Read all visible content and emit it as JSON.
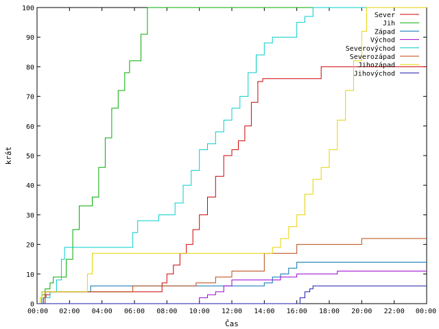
{
  "chart_data": {
    "type": "line",
    "title": "",
    "xlabel": "Čas",
    "ylabel": "krát",
    "xlim": [
      0,
      24
    ],
    "ylim": [
      0,
      100
    ],
    "x_ticks": [
      "00:00",
      "02:00",
      "04:00",
      "06:00",
      "08:00",
      "10:00",
      "12:00",
      "14:00",
      "16:00",
      "18:00",
      "20:00",
      "22:00",
      "00:00"
    ],
    "y_ticks": [
      "0",
      "10",
      "20",
      "30",
      "40",
      "50",
      "60",
      "70",
      "80",
      "90",
      "100"
    ],
    "grid": false,
    "legend_position": "top-right",
    "series": [
      {
        "name": "Sever",
        "color": "#cc0000",
        "x": [
          0,
          0.4,
          0.55,
          0.8,
          1.0,
          7.6,
          7.7,
          8.0,
          8.4,
          8.8,
          9.2,
          9.6,
          10.0,
          10.5,
          11.0,
          11.5,
          12.0,
          12.4,
          12.8,
          13.2,
          13.6,
          13.9,
          17.0,
          17.5,
          24
        ],
        "y": [
          0,
          2,
          3,
          4,
          4,
          4,
          7,
          10,
          13,
          17,
          20,
          25,
          30,
          36,
          43,
          50,
          52,
          55,
          60,
          68,
          75,
          76,
          76,
          80,
          80
        ]
      },
      {
        "name": "Jih",
        "color": "#00aa00",
        "x": [
          0,
          0.3,
          0.5,
          0.8,
          1.0,
          1.6,
          1.8,
          2.2,
          2.6,
          3.0,
          3.4,
          3.8,
          4.2,
          4.6,
          5.0,
          5.4,
          5.7,
          6.0,
          6.4,
          6.8,
          24
        ],
        "y": [
          0,
          3,
          5,
          7,
          9,
          9,
          15,
          25,
          33,
          33,
          36,
          46,
          56,
          66,
          72,
          78,
          82,
          82,
          91,
          100,
          100
        ]
      },
      {
        "name": "Západ",
        "color": "#0072b2",
        "x": [
          0,
          0.3,
          0.4,
          3.2,
          3.3,
          12.6,
          13.6,
          14.0,
          14.5,
          15.0,
          15.5,
          16.0,
          24
        ],
        "y": [
          0,
          4,
          4,
          4,
          6,
          6,
          6,
          7,
          9,
          10,
          12,
          14,
          14
        ]
      },
      {
        "name": "Východ",
        "color": "#9900cc",
        "x": [
          0,
          9.9,
          10.0,
          10.5,
          11.0,
          11.5,
          12.0,
          13.0,
          14.0,
          15.0,
          16.0,
          17.0,
          18.5,
          24
        ],
        "y": [
          0,
          0,
          2,
          3,
          4,
          6,
          8,
          8,
          8,
          9,
          10,
          10,
          11,
          11
        ]
      },
      {
        "name": "Severovýchod",
        "color": "#00cccc",
        "x": [
          0,
          0.5,
          0.8,
          1.2,
          1.5,
          1.7,
          5.6,
          5.9,
          6.2,
          6.8,
          7.5,
          8.0,
          8.5,
          9.0,
          9.5,
          10.0,
          10.5,
          11.0,
          11.5,
          12.0,
          12.5,
          13.0,
          13.5,
          14.0,
          14.5,
          15.0,
          16.0,
          16.5,
          17.0,
          17.2,
          24
        ],
        "y": [
          0,
          2,
          4,
          8,
          15,
          19,
          19,
          24,
          28,
          28,
          30,
          30,
          34,
          40,
          45,
          52,
          54,
          58,
          62,
          66,
          70,
          78,
          84,
          88,
          90,
          90,
          95,
          97,
          100,
          100,
          100
        ]
      },
      {
        "name": "Severozápad",
        "color": "#b8460d",
        "x": [
          0,
          0.5,
          0.6,
          5.8,
          5.9,
          9.7,
          9.8,
          10.9,
          11.0,
          11.9,
          12.0,
          13.9,
          14.0,
          15.9,
          16.0,
          19.9,
          20.0,
          24
        ],
        "y": [
          0,
          4,
          4,
          4,
          6,
          6,
          7,
          7,
          9,
          9,
          11,
          11,
          17,
          17,
          20,
          20,
          22,
          22
        ]
      },
      {
        "name": "Jihozápad",
        "color": "#e6d200",
        "x": [
          0,
          0.2,
          0.3,
          2.9,
          3.1,
          3.4,
          14.0,
          14.5,
          15.0,
          15.5,
          16.0,
          16.5,
          17.0,
          17.5,
          18.0,
          18.5,
          19.0,
          19.5,
          20.0,
          20.3,
          24
        ],
        "y": [
          0,
          2,
          4,
          4,
          10,
          17,
          17,
          19,
          22,
          26,
          30,
          37,
          42,
          46,
          52,
          62,
          72,
          82,
          92,
          100,
          100
        ]
      },
      {
        "name": "Jihovýchod",
        "color": "#1a1aaa",
        "x": [
          0,
          16.0,
          16.2,
          16.5,
          16.8,
          17.0,
          24
        ],
        "y": [
          0,
          0,
          2,
          4,
          5,
          6,
          6
        ]
      }
    ]
  }
}
